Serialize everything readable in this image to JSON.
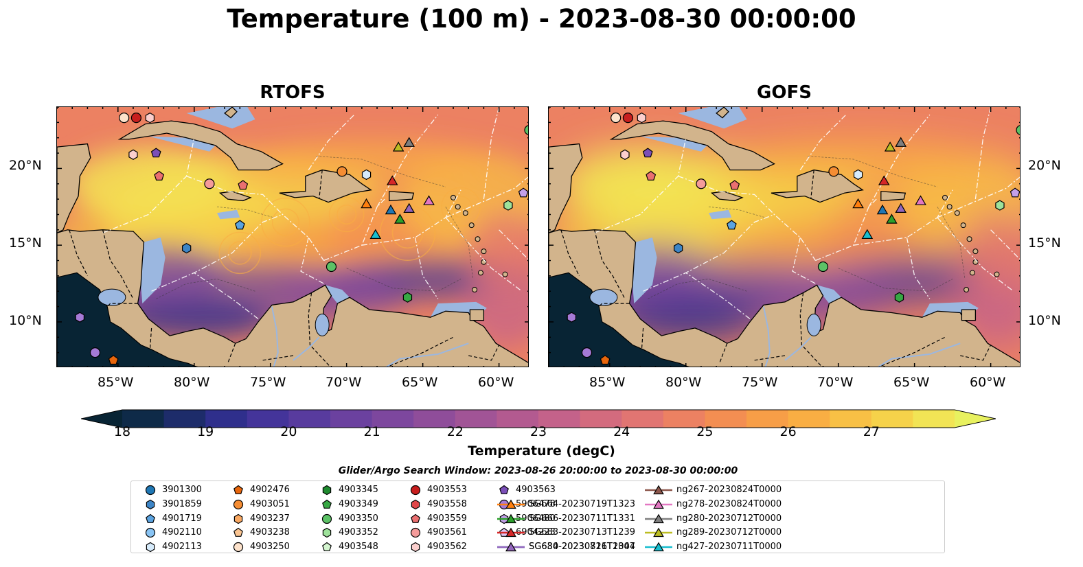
{
  "title": "Temperature (100 m) - 2023-08-30 00:00:00",
  "panels": [
    {
      "title": "RTOFS"
    },
    {
      "title": "GOFS"
    }
  ],
  "axes": {
    "lon_ticks": [
      "85°W",
      "80°W",
      "75°W",
      "70°W",
      "65°W",
      "60°W"
    ],
    "lat_ticks": [
      "20°N",
      "15°N",
      "10°N"
    ]
  },
  "colorbar": {
    "label": "Temperature (degC)",
    "ticks": [
      "18",
      "19",
      "20",
      "21",
      "22",
      "23",
      "24",
      "25",
      "26",
      "27"
    ],
    "colors": [
      "#082434",
      "#0e2a48",
      "#1d2c6a",
      "#2f2f8c",
      "#44349a",
      "#583b9e",
      "#6b419f",
      "#7d479e",
      "#8f4d9a",
      "#a15496",
      "#b35a90",
      "#c4628a",
      "#d36b7e",
      "#e17572",
      "#ec8162",
      "#f38e52",
      "#f79e47",
      "#f9ae43",
      "#f8c045",
      "#f6d24a",
      "#f2e455",
      "#e8f15f"
    ],
    "extend": "both"
  },
  "search_window": "Glider/Argo Search Window: 2023-08-26 20:00:00 to 2023-08-30 00:00:00",
  "legend": [
    {
      "label": "3901300",
      "marker": "circle",
      "color": "#1f77b4"
    },
    {
      "label": "3901859",
      "marker": "hexagon",
      "color": "#3d85c6"
    },
    {
      "label": "4901719",
      "marker": "pentagon",
      "color": "#5ba3e0"
    },
    {
      "label": "4902110",
      "marker": "circle",
      "color": "#89c4f4"
    },
    {
      "label": "4902113",
      "marker": "hexagon",
      "color": "#d6ebfb"
    },
    {
      "label": "4902476",
      "marker": "pentagon",
      "color": "#e8660c"
    },
    {
      "label": "4903051",
      "marker": "circle",
      "color": "#f58d33"
    },
    {
      "label": "4903237",
      "marker": "hexagon",
      "color": "#f9a862"
    },
    {
      "label": "4903238",
      "marker": "pentagon",
      "color": "#fbc592"
    },
    {
      "label": "4903250",
      "marker": "circle",
      "color": "#fde2cb"
    },
    {
      "label": "4903345",
      "marker": "hexagon",
      "color": "#1e8a2e"
    },
    {
      "label": "4903349",
      "marker": "pentagon",
      "color": "#37a844"
    },
    {
      "label": "4903350",
      "marker": "circle",
      "color": "#5cc266"
    },
    {
      "label": "4903352",
      "marker": "hexagon",
      "color": "#9ee29b"
    },
    {
      "label": "4903548",
      "marker": "pentagon",
      "color": "#d4f5cf"
    },
    {
      "label": "4903553",
      "marker": "circle",
      "color": "#c81e1e"
    },
    {
      "label": "4903558",
      "marker": "hexagon",
      "color": "#e0474a"
    },
    {
      "label": "4903559",
      "marker": "pentagon",
      "color": "#ea6f70"
    },
    {
      "label": "4903561",
      "marker": "circle",
      "color": "#f49b9a"
    },
    {
      "label": "4903562",
      "marker": "hexagon",
      "color": "#fbcfcd"
    },
    {
      "label": "4903563",
      "marker": "pentagon",
      "color": "#7b4fb8"
    },
    {
      "label": "5906478",
      "marker": "circle",
      "color": "#a67ad6"
    },
    {
      "label": "5906480",
      "marker": "hexagon",
      "color": "#c3a0e8"
    },
    {
      "label": "6904223",
      "marker": "pentagon",
      "color": "#dfc8f6"
    },
    {
      "label": "SG630-20230826T2004",
      "marker": "triangle-line",
      "color": "#1f77b4"
    },
    {
      "label": "SG664-20230719T1323",
      "marker": "triangle-line",
      "color": "#ff7f0e"
    },
    {
      "label": "SG666-20230711T1331",
      "marker": "triangle-line",
      "color": "#2ca02c"
    },
    {
      "label": "SG683-20230713T1239",
      "marker": "triangle-line",
      "color": "#d62728"
    },
    {
      "label": "SG684-20230711T1347",
      "marker": "triangle-line",
      "color": "#9467bd"
    },
    {
      "label": "ng267-20230824T0000",
      "marker": "triangle-line",
      "color": "#8c564b"
    },
    {
      "label": "ng278-20230824T0000",
      "marker": "triangle-line",
      "color": "#e377c2"
    },
    {
      "label": "ng280-20230712T0000",
      "marker": "triangle-line",
      "color": "#7f7f7f"
    },
    {
      "label": "ng289-20230712T0000",
      "marker": "triangle-line",
      "color": "#bcbd22"
    },
    {
      "label": "ng427-20230711T0000",
      "marker": "triangle-line",
      "color": "#17becf"
    }
  ],
  "map_extent": {
    "lon": [
      -89,
      -58
    ],
    "lat": [
      7,
      24
    ]
  },
  "observations": [
    {
      "lon": -84.6,
      "lat": 23.3,
      "marker": "circle",
      "color": "#fde2cb"
    },
    {
      "lon": -83.8,
      "lat": 23.3,
      "marker": "circle",
      "color": "#c81e1e"
    },
    {
      "lon": -82.9,
      "lat": 23.3,
      "marker": "hexagon",
      "color": "#fbcfcd"
    },
    {
      "lon": -84.0,
      "lat": 20.9,
      "marker": "hexagon",
      "color": "#fbcfcd"
    },
    {
      "lon": -82.5,
      "lat": 21.0,
      "marker": "pentagon",
      "color": "#7b4fb8"
    },
    {
      "lon": -82.3,
      "lat": 19.5,
      "marker": "pentagon",
      "color": "#ea6f70"
    },
    {
      "lon": -79.0,
      "lat": 19.0,
      "marker": "circle",
      "color": "#f49b9a"
    },
    {
      "lon": -76.8,
      "lat": 18.9,
      "marker": "pentagon",
      "color": "#ea6f70"
    },
    {
      "lon": -70.3,
      "lat": 19.8,
      "marker": "circle",
      "color": "#f58d33"
    },
    {
      "lon": -68.7,
      "lat": 19.6,
      "marker": "hexagon",
      "color": "#d6ebfb"
    },
    {
      "lon": -77.0,
      "lat": 16.3,
      "marker": "pentagon",
      "color": "#5ba3e0"
    },
    {
      "lon": -80.5,
      "lat": 14.8,
      "marker": "hexagon",
      "color": "#3d85c6"
    },
    {
      "lon": -71.0,
      "lat": 13.6,
      "marker": "circle",
      "color": "#5cc266"
    },
    {
      "lon": -66.0,
      "lat": 11.6,
      "marker": "hexagon",
      "color": "#37a844"
    },
    {
      "lon": -58.0,
      "lat": 22.5,
      "marker": "circle",
      "color": "#5cc266"
    },
    {
      "lon": -58.4,
      "lat": 18.4,
      "marker": "pentagon",
      "color": "#c3a0e8"
    },
    {
      "lon": -59.4,
      "lat": 17.6,
      "marker": "hexagon",
      "color": "#9ee29b"
    },
    {
      "lon": -87.5,
      "lat": 10.3,
      "marker": "hexagon",
      "color": "#a67ad6"
    },
    {
      "lon": -86.5,
      "lat": 8.0,
      "marker": "circle",
      "color": "#a67ad6"
    },
    {
      "lon": -85.3,
      "lat": 7.5,
      "marker": "pentagon",
      "color": "#e8660c"
    },
    {
      "lon": -66.6,
      "lat": 21.4,
      "marker": "triangle",
      "color": "#bcbd22"
    },
    {
      "lon": -65.9,
      "lat": 21.7,
      "marker": "triangle",
      "color": "#7f7f7f"
    },
    {
      "lon": -67.0,
      "lat": 19.2,
      "marker": "triangle",
      "color": "#d62728"
    },
    {
      "lon": -68.7,
      "lat": 17.7,
      "marker": "triangle",
      "color": "#ff7f0e"
    },
    {
      "lon": -67.1,
      "lat": 17.3,
      "marker": "triangle",
      "color": "#1f77b4"
    },
    {
      "lon": -66.5,
      "lat": 16.7,
      "marker": "triangle",
      "color": "#2ca02c"
    },
    {
      "lon": -65.9,
      "lat": 17.4,
      "marker": "triangle",
      "color": "#9467bd"
    },
    {
      "lon": -64.6,
      "lat": 17.9,
      "marker": "triangle",
      "color": "#e377c2"
    },
    {
      "lon": -68.1,
      "lat": 15.7,
      "marker": "triangle",
      "color": "#17becf"
    }
  ]
}
